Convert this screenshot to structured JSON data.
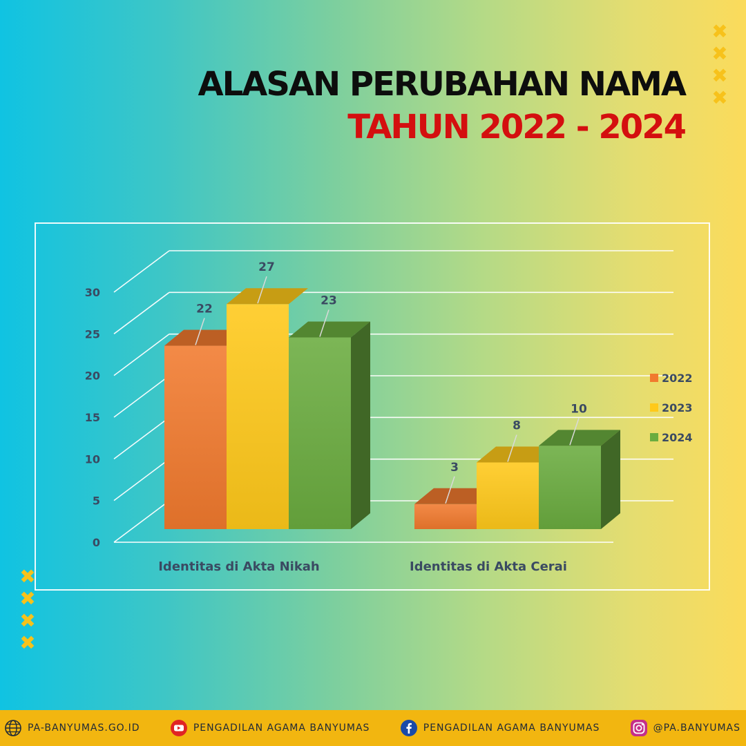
{
  "title": {
    "line1": "ALASAN PERUBAHAN NAMA",
    "line2": "TAHUN 2022 - 2024"
  },
  "decor": {
    "mark": "✖"
  },
  "colors": {
    "title_primary": "#0d0d0d",
    "title_accent": "#d40f0f",
    "footer_bg": "#f2b610",
    "series_2022": "#f17a2e",
    "series_2023": "#ffc91a",
    "series_2024": "#6aac3f"
  },
  "chart_data": {
    "type": "bar",
    "style": "3d clustered column",
    "categories": [
      "Identitas di Akta Nikah",
      "Identitas di Akta Cerai"
    ],
    "series": [
      {
        "name": "2022",
        "values": [
          22,
          3
        ],
        "color": "#f17a2e"
      },
      {
        "name": "2023",
        "values": [
          27,
          8
        ],
        "color": "#ffc91a"
      },
      {
        "name": "2024",
        "values": [
          23,
          10
        ],
        "color": "#6aac3f"
      }
    ],
    "ylim": [
      0,
      30
    ],
    "yticks": [
      0,
      5,
      10,
      15,
      20,
      25,
      30
    ],
    "grid": true,
    "legend": "right",
    "data_labels": true
  },
  "footer": {
    "items": [
      {
        "icon": "globe-icon",
        "text": "PA-BANYUMAS.GO.ID"
      },
      {
        "icon": "youtube-icon",
        "text": "PENGADILAN AGAMA BANYUMAS"
      },
      {
        "icon": "facebook-icon",
        "text": "PENGADILAN AGAMA BANYUMAS"
      },
      {
        "icon": "instagram-icon",
        "text": "@PA.BANYUMAS"
      }
    ]
  }
}
